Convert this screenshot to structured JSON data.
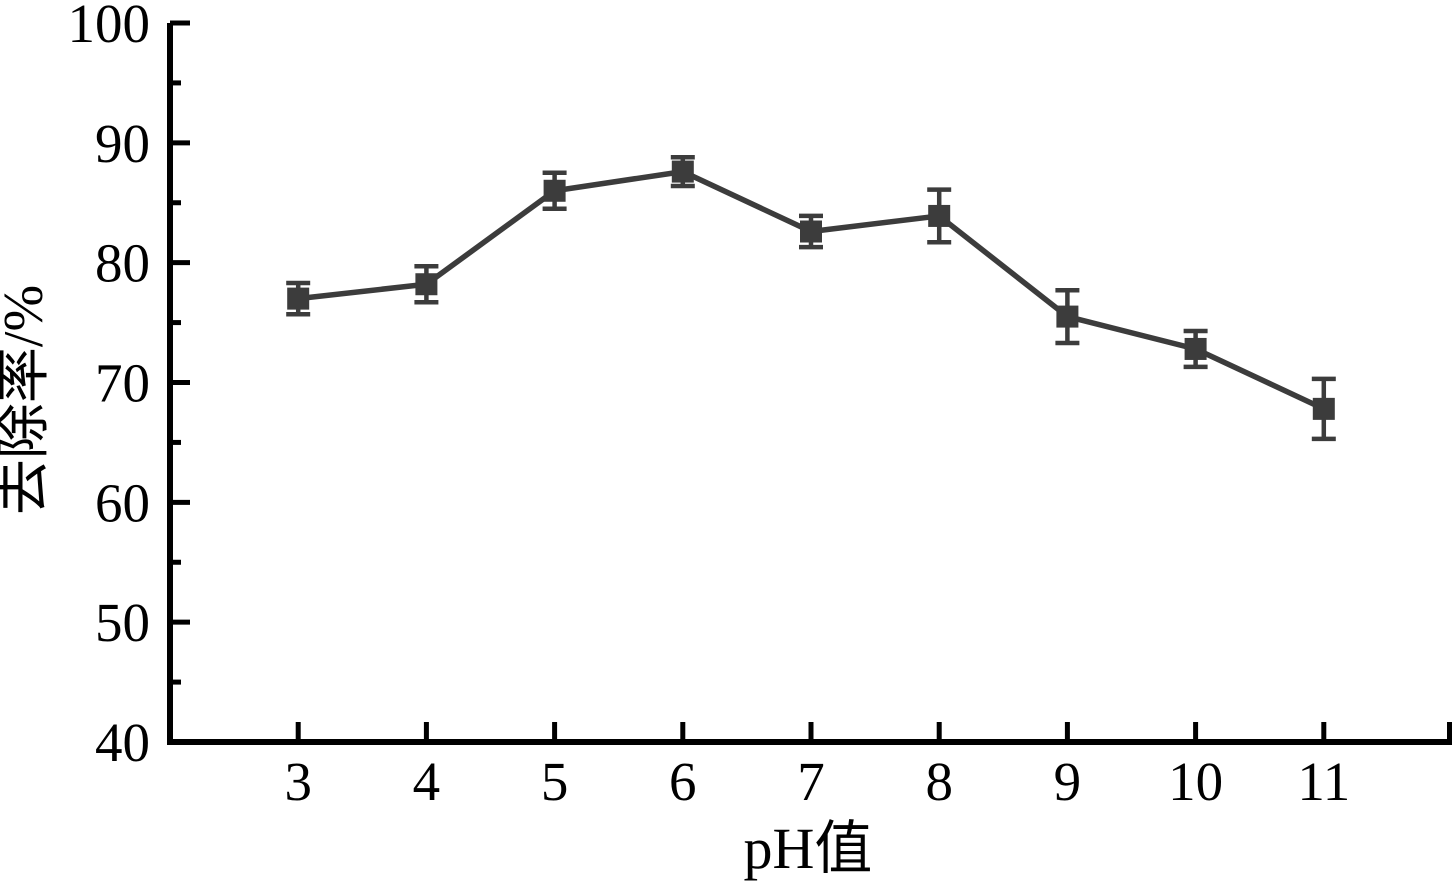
{
  "figure": {
    "background": "#ffffff",
    "axis_color": "#000000",
    "series_color": "#3c3c3c"
  },
  "chart_data": {
    "type": "line",
    "title": "",
    "xlabel": "pH值",
    "ylabel": "去除率/%",
    "x": [
      3,
      4,
      5,
      6,
      7,
      8,
      9,
      10,
      11
    ],
    "series": [
      {
        "values": [
          77.0,
          78.2,
          86.0,
          87.6,
          82.6,
          83.9,
          75.5,
          72.8,
          67.8
        ],
        "errors": [
          1.3,
          1.5,
          1.5,
          1.2,
          1.3,
          2.2,
          2.2,
          1.5,
          2.5
        ],
        "marker": "square",
        "color": "#3c3c3c"
      }
    ],
    "xlim": [
      2,
      12
    ],
    "ylim": [
      40,
      100
    ],
    "x_ticks": [
      3,
      4,
      5,
      6,
      7,
      8,
      9,
      10,
      11
    ],
    "x_end_tick": 12,
    "y_major_ticks": [
      40,
      50,
      60,
      70,
      80,
      90,
      100
    ],
    "y_minor_ticks": [
      45,
      55,
      65,
      75,
      85,
      95
    ],
    "grid": false,
    "legend": false,
    "error_bars": true
  }
}
